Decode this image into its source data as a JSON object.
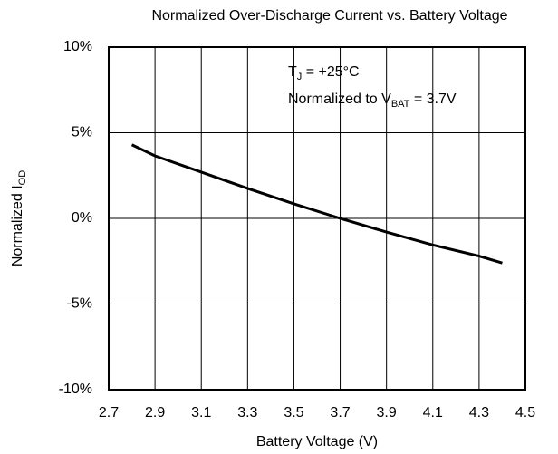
{
  "chart_data": {
    "type": "line",
    "title": "Normalized Over-Discharge Current vs. Battery Voltage",
    "x_label": "Battery Voltage (V)",
    "y_label": [
      "Normalized I",
      "OD"
    ],
    "annotations": [
      [
        "T",
        "J",
        " = +25°C"
      ],
      [
        "Normalized to V",
        "BAT",
        " = 3.7V"
      ]
    ],
    "x": [
      2.8,
      2.9,
      3.1,
      3.3,
      3.5,
      3.7,
      3.9,
      4.1,
      4.3,
      4.4
    ],
    "series": [
      {
        "color": "#000000",
        "values": [
          4.3,
          3.65,
          2.7,
          1.75,
          0.85,
          0,
          -0.8,
          -1.55,
          -2.2,
          -2.6
        ]
      }
    ],
    "xlim": [
      2.7,
      4.5
    ],
    "xticks": [
      2.7,
      2.9,
      3.1,
      3.3,
      3.5,
      3.7,
      3.9,
      4.1,
      4.3,
      4.5
    ],
    "ylim": [
      -10,
      10
    ],
    "yticks": [
      {
        "value": -10,
        "label": "-10%"
      },
      {
        "value": -5,
        "label": "-5%"
      },
      {
        "value": 0,
        "label": "0%"
      },
      {
        "value": 5,
        "label": "5%"
      },
      {
        "value": 10,
        "label": "10%"
      }
    ],
    "grid": true
  }
}
